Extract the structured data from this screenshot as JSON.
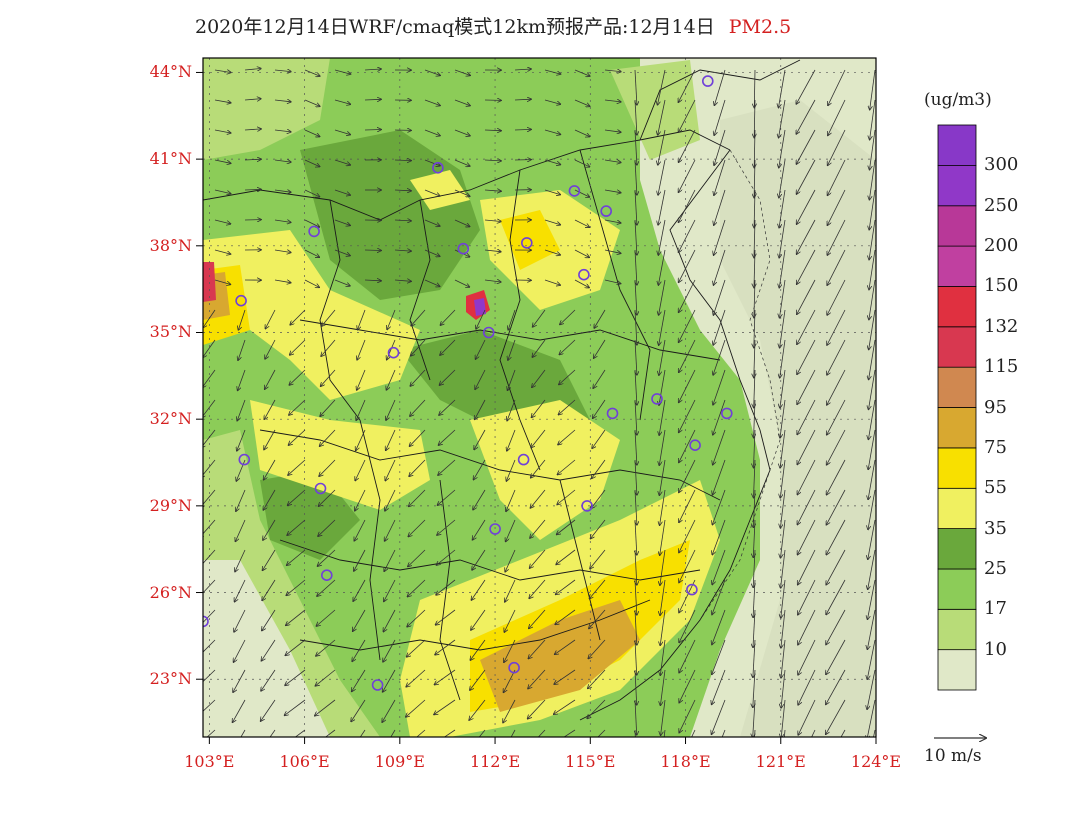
{
  "title": {
    "main": "2020年12月14日WRF/cmaq模式12km预报产品:12月14日",
    "variable": "PM2.5"
  },
  "map": {
    "lat_labels": [
      "44°N",
      "41°N",
      "38°N",
      "35°N",
      "32°N",
      "29°N",
      "26°N",
      "23°N"
    ],
    "lon_labels": [
      "103°E",
      "106°E",
      "109°E",
      "112°E",
      "115°E",
      "118°E",
      "121°E",
      "124°E"
    ],
    "lat_range": [
      21,
      44.5
    ],
    "lon_range": [
      102.8,
      124
    ]
  },
  "legend": {
    "unit": "(ug/m3)",
    "levels": [
      {
        "label": "10",
        "color": "#e0e8c8"
      },
      {
        "label": "17",
        "color": "#b8dc78"
      },
      {
        "label": "25",
        "color": "#8ccc58"
      },
      {
        "label": "35",
        "color": "#6aa83c"
      },
      {
        "label": "55",
        "color": "#f0f060"
      },
      {
        "label": "75",
        "color": "#f8e000"
      },
      {
        "label": "95",
        "color": "#d8a830"
      },
      {
        "label": "115",
        "color": "#d08850"
      },
      {
        "label": "132",
        "color": "#d83850"
      },
      {
        "label": "150",
        "color": "#e03040"
      },
      {
        "label": "200",
        "color": "#c040a0"
      },
      {
        "label": "250",
        "color": "#b83898"
      },
      {
        "label": "300",
        "color": "#9038c8"
      }
    ],
    "top_color": "#8838c8"
  },
  "wind_reference": {
    "label": "10 m/s"
  },
  "cities": [
    {
      "lon": 118.7,
      "lat": 43.7
    },
    {
      "lon": 110.2,
      "lat": 40.7
    },
    {
      "lon": 114.5,
      "lat": 39.9
    },
    {
      "lon": 115.5,
      "lat": 39.2
    },
    {
      "lon": 106.3,
      "lat": 38.5
    },
    {
      "lon": 111.0,
      "lat": 37.9
    },
    {
      "lon": 113.0,
      "lat": 38.1
    },
    {
      "lon": 114.8,
      "lat": 37.0
    },
    {
      "lon": 104.0,
      "lat": 36.1
    },
    {
      "lon": 111.8,
      "lat": 35.0
    },
    {
      "lon": 108.8,
      "lat": 34.3
    },
    {
      "lon": 117.1,
      "lat": 32.7
    },
    {
      "lon": 115.7,
      "lat": 32.2
    },
    {
      "lon": 119.3,
      "lat": 32.2
    },
    {
      "lon": 118.3,
      "lat": 31.1
    },
    {
      "lon": 104.1,
      "lat": 30.6
    },
    {
      "lon": 112.9,
      "lat": 30.6
    },
    {
      "lon": 106.5,
      "lat": 29.6
    },
    {
      "lon": 114.9,
      "lat": 29.0
    },
    {
      "lon": 112.0,
      "lat": 28.2
    },
    {
      "lon": 118.2,
      "lat": 26.1
    },
    {
      "lon": 106.7,
      "lat": 26.6
    },
    {
      "lon": 102.8,
      "lat": 25.0
    },
    {
      "lon": 112.6,
      "lat": 23.4
    },
    {
      "lon": 108.3,
      "lat": 22.8
    }
  ]
}
